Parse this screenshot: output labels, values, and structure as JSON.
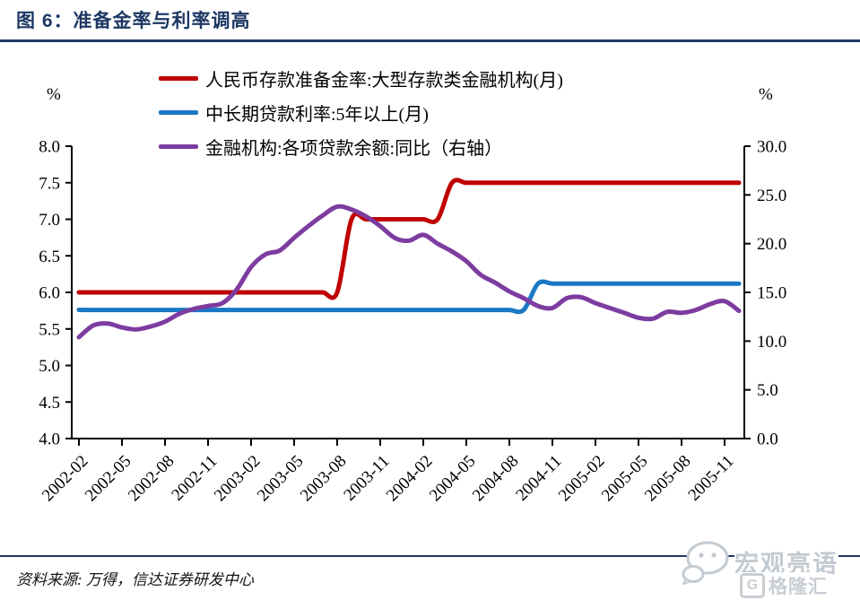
{
  "header": {
    "title": "图 6：准备金率与利率调高"
  },
  "footer": {
    "source": "资料来源: 万得，信达证券研发中心"
  },
  "watermark": {
    "brand": "宏观亮语",
    "gelonghui": "格隆汇",
    "gelonghui_initial": "G"
  },
  "theme": {
    "navy": "#1F3864",
    "axis_color": "#000000",
    "watermark_gray": "#c9ced4"
  },
  "chart_data": {
    "type": "line",
    "x": [
      "2002-02",
      "2002-03",
      "2002-04",
      "2002-05",
      "2002-06",
      "2002-07",
      "2002-08",
      "2002-09",
      "2002-10",
      "2002-11",
      "2002-12",
      "2003-01",
      "2003-02",
      "2003-03",
      "2003-04",
      "2003-05",
      "2003-06",
      "2003-07",
      "2003-08",
      "2003-09",
      "2003-10",
      "2003-11",
      "2003-12",
      "2004-01",
      "2004-02",
      "2004-03",
      "2004-04",
      "2004-05",
      "2004-06",
      "2004-07",
      "2004-08",
      "2004-09",
      "2004-10",
      "2004-11",
      "2004-12",
      "2005-01",
      "2005-02",
      "2005-03",
      "2005-04",
      "2005-05",
      "2005-06",
      "2005-07",
      "2005-08",
      "2005-09",
      "2005-10",
      "2005-11",
      "2005-12"
    ],
    "x_tick_every": 3,
    "series": [
      {
        "name": "人民币存款准备金率:大型存款类金融机构(月)",
        "axis": "left",
        "color": "#C00000",
        "values": [
          6.0,
          6.0,
          6.0,
          6.0,
          6.0,
          6.0,
          6.0,
          6.0,
          6.0,
          6.0,
          6.0,
          6.0,
          6.0,
          6.0,
          6.0,
          6.0,
          6.0,
          6.0,
          6.0,
          7.0,
          7.0,
          7.0,
          7.0,
          7.0,
          7.0,
          7.0,
          7.5,
          7.5,
          7.5,
          7.5,
          7.5,
          7.5,
          7.5,
          7.5,
          7.5,
          7.5,
          7.5,
          7.5,
          7.5,
          7.5,
          7.5,
          7.5,
          7.5,
          7.5,
          7.5,
          7.5,
          7.5
        ]
      },
      {
        "name": "中长期贷款利率:5年以上(月)",
        "axis": "left",
        "color": "#1A78C4",
        "values": [
          5.76,
          5.76,
          5.76,
          5.76,
          5.76,
          5.76,
          5.76,
          5.76,
          5.76,
          5.76,
          5.76,
          5.76,
          5.76,
          5.76,
          5.76,
          5.76,
          5.76,
          5.76,
          5.76,
          5.76,
          5.76,
          5.76,
          5.76,
          5.76,
          5.76,
          5.76,
          5.76,
          5.76,
          5.76,
          5.76,
          5.76,
          5.76,
          6.12,
          6.12,
          6.12,
          6.12,
          6.12,
          6.12,
          6.12,
          6.12,
          6.12,
          6.12,
          6.12,
          6.12,
          6.12,
          6.12,
          6.12
        ]
      },
      {
        "name": "金融机构:各项贷款余额:同比（右轴）",
        "axis": "right",
        "color": "#7D3CA0",
        "values": [
          10.4,
          11.6,
          11.8,
          11.4,
          11.2,
          11.5,
          12.0,
          12.8,
          13.3,
          13.6,
          13.9,
          15.3,
          17.6,
          18.9,
          19.3,
          20.6,
          21.8,
          22.9,
          23.8,
          23.5,
          22.8,
          21.8,
          20.6,
          20.3,
          20.9,
          20.0,
          19.2,
          18.2,
          16.8,
          16.0,
          15.1,
          14.4,
          13.6,
          13.4,
          14.4,
          14.5,
          13.9,
          13.4,
          12.9,
          12.4,
          12.3,
          13.0,
          12.9,
          13.2,
          13.8,
          14.1,
          13.1
        ]
      }
    ],
    "left_axis": {
      "unit": "%",
      "min": 4.0,
      "max": 8.0,
      "tick_labels": [
        "8.0",
        "7.5",
        "7.0",
        "6.5",
        "6.0",
        "5.5",
        "5.0",
        "4.5",
        "4.0"
      ]
    },
    "right_axis": {
      "unit": "%",
      "min": 0.0,
      "max": 30.0,
      "tick_labels": [
        "30.0",
        "25.0",
        "20.0",
        "15.0",
        "10.0",
        "5.0",
        "0.0"
      ]
    },
    "legend_position": "top",
    "grid": false
  }
}
